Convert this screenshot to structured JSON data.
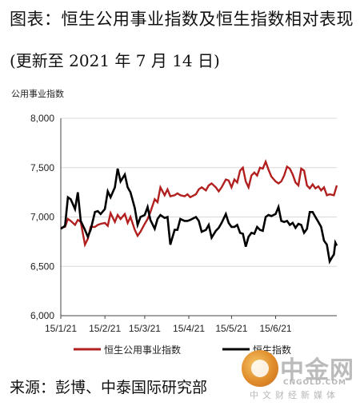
{
  "header": {
    "title": "图表：恒生公用事业指数及恒生指数相对表现",
    "subtitle": "(更新至 2021 年 7 月 14 日)",
    "y_unit": "公用事业指数"
  },
  "footer": {
    "source": "来源：彭博、中泰国际研究部"
  },
  "watermark": {
    "name": "中金网",
    "site": "CNGOLD.COM",
    "tagline": "中文财经新媒体"
  },
  "colors": {
    "utilities": "#b21f1f",
    "hsi": "#000000",
    "grid": "#d9d9d9"
  },
  "chart_data": {
    "type": "line",
    "title": "图表：恒生公用事业指数及恒生指数相对表现",
    "ylabel": "公用事业指数",
    "xlabel": "",
    "ylim": [
      6000,
      8000
    ],
    "yticks": [
      6000,
      6500,
      7000,
      7500,
      8000
    ],
    "ytick_labels": [
      "6,000",
      "6,500",
      "7,000",
      "7,500",
      "8,000"
    ],
    "xlim": [
      "2021-01-01",
      "2021-07-14"
    ],
    "xticks": [
      "2021-01-01",
      "2021-02-01",
      "2021-03-01",
      "2021-04-01",
      "2021-05-01",
      "2021-06-01"
    ],
    "xtick_labels": [
      "15/1/21",
      "15/2/21",
      "15/3/21",
      "15/4/21",
      "15/5/21",
      "15/6/21"
    ],
    "grid": true,
    "legend": "bottom",
    "series": [
      {
        "name": "恒生公用事业指数",
        "color": "#b21f1f",
        "points": [
          [
            "2021-01-01",
            6890
          ],
          [
            "2021-01-04",
            6900
          ],
          [
            "2021-01-06",
            6980
          ],
          [
            "2021-01-08",
            6960
          ],
          [
            "2021-01-11",
            6920
          ],
          [
            "2021-01-13",
            6970
          ],
          [
            "2021-01-15",
            6950
          ],
          [
            "2021-01-18",
            6720
          ],
          [
            "2021-01-20",
            6780
          ],
          [
            "2021-01-22",
            6900
          ],
          [
            "2021-01-25",
            6900
          ],
          [
            "2021-01-27",
            6920
          ],
          [
            "2021-01-29",
            6930
          ],
          [
            "2021-02-01",
            6940
          ],
          [
            "2021-02-03",
            6910
          ],
          [
            "2021-02-05",
            7040
          ],
          [
            "2021-02-08",
            6950
          ],
          [
            "2021-02-10",
            7020
          ],
          [
            "2021-02-12",
            6980
          ],
          [
            "2021-02-15",
            7030
          ],
          [
            "2021-02-17",
            6940
          ],
          [
            "2021-02-19",
            7000
          ],
          [
            "2021-02-22",
            6870
          ],
          [
            "2021-02-24",
            6810
          ],
          [
            "2021-02-26",
            6850
          ],
          [
            "2021-03-01",
            6930
          ],
          [
            "2021-03-03",
            6980
          ],
          [
            "2021-03-05",
            7050
          ],
          [
            "2021-03-08",
            7180
          ],
          [
            "2021-03-10",
            7150
          ],
          [
            "2021-03-12",
            7300
          ],
          [
            "2021-03-15",
            7220
          ],
          [
            "2021-03-17",
            7280
          ],
          [
            "2021-03-19",
            7210
          ],
          [
            "2021-03-22",
            7220
          ],
          [
            "2021-03-24",
            7240
          ],
          [
            "2021-03-26",
            7220
          ],
          [
            "2021-03-29",
            7210
          ],
          [
            "2021-03-31",
            7230
          ],
          [
            "2021-04-02",
            7200
          ],
          [
            "2021-04-06",
            7230
          ],
          [
            "2021-04-08",
            7280
          ],
          [
            "2021-04-10",
            7300
          ],
          [
            "2021-04-13",
            7270
          ],
          [
            "2021-04-15",
            7320
          ],
          [
            "2021-04-17",
            7340
          ],
          [
            "2021-04-20",
            7300
          ],
          [
            "2021-04-22",
            7260
          ],
          [
            "2021-04-24",
            7300
          ],
          [
            "2021-04-27",
            7380
          ],
          [
            "2021-04-29",
            7370
          ],
          [
            "2021-05-01",
            7300
          ],
          [
            "2021-05-03",
            7380
          ],
          [
            "2021-05-05",
            7350
          ],
          [
            "2021-05-07",
            7470
          ],
          [
            "2021-05-09",
            7500
          ],
          [
            "2021-05-11",
            7360
          ],
          [
            "2021-05-13",
            7300
          ],
          [
            "2021-05-15",
            7420
          ],
          [
            "2021-05-17",
            7450
          ],
          [
            "2021-05-19",
            7420
          ],
          [
            "2021-05-21",
            7500
          ],
          [
            "2021-05-23",
            7490
          ],
          [
            "2021-05-25",
            7560
          ],
          [
            "2021-05-27",
            7480
          ],
          [
            "2021-05-29",
            7410
          ],
          [
            "2021-06-01",
            7360
          ],
          [
            "2021-06-03",
            7340
          ],
          [
            "2021-06-05",
            7360
          ],
          [
            "2021-06-07",
            7420
          ],
          [
            "2021-06-09",
            7510
          ],
          [
            "2021-06-11",
            7490
          ],
          [
            "2021-06-13",
            7430
          ],
          [
            "2021-06-15",
            7350
          ],
          [
            "2021-06-17",
            7320
          ],
          [
            "2021-06-19",
            7490
          ],
          [
            "2021-06-21",
            7470
          ],
          [
            "2021-06-23",
            7320
          ],
          [
            "2021-06-25",
            7290
          ],
          [
            "2021-06-27",
            7330
          ],
          [
            "2021-06-29",
            7290
          ],
          [
            "2021-07-01",
            7310
          ],
          [
            "2021-07-03",
            7270
          ],
          [
            "2021-07-05",
            7300
          ],
          [
            "2021-07-07",
            7220
          ],
          [
            "2021-07-09",
            7230
          ],
          [
            "2021-07-12",
            7220
          ],
          [
            "2021-07-14",
            7320
          ]
        ]
      },
      {
        "name": "恒生指数",
        "color": "#000000",
        "points": [
          [
            "2021-01-01",
            6880
          ],
          [
            "2021-01-04",
            6910
          ],
          [
            "2021-01-06",
            7200
          ],
          [
            "2021-01-08",
            7180
          ],
          [
            "2021-01-11",
            7080
          ],
          [
            "2021-01-13",
            7250
          ],
          [
            "2021-01-15",
            6960
          ],
          [
            "2021-01-18",
            6870
          ],
          [
            "2021-01-20",
            6800
          ],
          [
            "2021-01-22",
            6870
          ],
          [
            "2021-01-25",
            7050
          ],
          [
            "2021-01-27",
            7060
          ],
          [
            "2021-01-29",
            7030
          ],
          [
            "2021-02-01",
            7080
          ],
          [
            "2021-02-03",
            7260
          ],
          [
            "2021-02-05",
            7200
          ],
          [
            "2021-02-08",
            7300
          ],
          [
            "2021-02-10",
            7490
          ],
          [
            "2021-02-12",
            7360
          ],
          [
            "2021-02-15",
            7430
          ],
          [
            "2021-02-17",
            7300
          ],
          [
            "2021-02-19",
            7250
          ],
          [
            "2021-02-22",
            7090
          ],
          [
            "2021-02-24",
            6920
          ],
          [
            "2021-02-26",
            7000
          ],
          [
            "2021-03-01",
            7020
          ],
          [
            "2021-03-03",
            7100
          ],
          [
            "2021-03-05",
            6970
          ],
          [
            "2021-03-08",
            6880
          ],
          [
            "2021-03-10",
            6980
          ],
          [
            "2021-03-12",
            7020
          ],
          [
            "2021-03-15",
            6990
          ],
          [
            "2021-03-17",
            7000
          ],
          [
            "2021-03-19",
            6720
          ],
          [
            "2021-03-22",
            6870
          ],
          [
            "2021-03-24",
            6870
          ],
          [
            "2021-03-26",
            6980
          ],
          [
            "2021-03-29",
            6960
          ],
          [
            "2021-03-31",
            6960
          ],
          [
            "2021-04-02",
            6970
          ],
          [
            "2021-04-06",
            7000
          ],
          [
            "2021-04-08",
            6960
          ],
          [
            "2021-04-10",
            6850
          ],
          [
            "2021-04-13",
            6870
          ],
          [
            "2021-04-15",
            6920
          ],
          [
            "2021-04-17",
            6790
          ],
          [
            "2021-04-20",
            6860
          ],
          [
            "2021-04-22",
            6890
          ],
          [
            "2021-04-24",
            6940
          ],
          [
            "2021-04-27",
            7030
          ],
          [
            "2021-04-29",
            6940
          ],
          [
            "2021-05-01",
            6900
          ],
          [
            "2021-05-03",
            6900
          ],
          [
            "2021-05-05",
            6920
          ],
          [
            "2021-05-07",
            6840
          ],
          [
            "2021-05-09",
            6830
          ],
          [
            "2021-05-11",
            6700
          ],
          [
            "2021-05-13",
            6800
          ],
          [
            "2021-05-15",
            6840
          ],
          [
            "2021-05-17",
            6830
          ],
          [
            "2021-05-19",
            6900
          ],
          [
            "2021-05-21",
            6870
          ],
          [
            "2021-05-23",
            6860
          ],
          [
            "2021-05-25",
            7000
          ],
          [
            "2021-05-27",
            7020
          ],
          [
            "2021-05-29",
            7010
          ],
          [
            "2021-06-01",
            7030
          ],
          [
            "2021-06-03",
            7100
          ],
          [
            "2021-06-05",
            6960
          ],
          [
            "2021-06-07",
            6950
          ],
          [
            "2021-06-09",
            6960
          ],
          [
            "2021-06-11",
            6920
          ],
          [
            "2021-06-13",
            6940
          ],
          [
            "2021-06-15",
            6890
          ],
          [
            "2021-06-17",
            6930
          ],
          [
            "2021-06-19",
            6920
          ],
          [
            "2021-06-21",
            6840
          ],
          [
            "2021-06-23",
            6880
          ],
          [
            "2021-06-25",
            7050
          ],
          [
            "2021-06-27",
            7050
          ],
          [
            "2021-06-29",
            7000
          ],
          [
            "2021-07-01",
            6950
          ],
          [
            "2021-07-03",
            6900
          ],
          [
            "2021-07-05",
            6760
          ],
          [
            "2021-07-07",
            6720
          ],
          [
            "2021-07-09",
            6550
          ],
          [
            "2021-07-11",
            6600
          ],
          [
            "2021-07-12",
            6620
          ],
          [
            "2021-07-13",
            6740
          ],
          [
            "2021-07-14",
            6710
          ]
        ]
      }
    ]
  }
}
